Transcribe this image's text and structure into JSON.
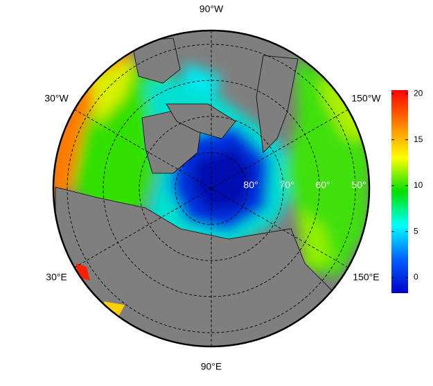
{
  "map": {
    "projection": "polar stereographic",
    "longitude_labels": [
      {
        "value": -90,
        "label": "90°W"
      },
      {
        "value": -30,
        "label": "30°W"
      },
      {
        "value": -150,
        "label": "150°W"
      },
      {
        "value": 30,
        "label": "30°E"
      },
      {
        "value": 150,
        "label": "150°E"
      },
      {
        "value": 90,
        "label": "90°E"
      }
    ],
    "latitude_labels": [
      {
        "value": 80,
        "label": "80°"
      },
      {
        "value": 70,
        "label": "70°"
      },
      {
        "value": 60,
        "label": "60°"
      },
      {
        "value": 50,
        "label": "50°"
      }
    ],
    "colorbar": {
      "lim": [
        -1.7,
        20.4
      ],
      "ticks": [
        0,
        5,
        10,
        15,
        20
      ],
      "colors": [
        "#0000c8",
        "#0060ff",
        "#00ffff",
        "#00e000",
        "#ffff00",
        "#ff8000",
        "#ff0000"
      ]
    }
  }
}
